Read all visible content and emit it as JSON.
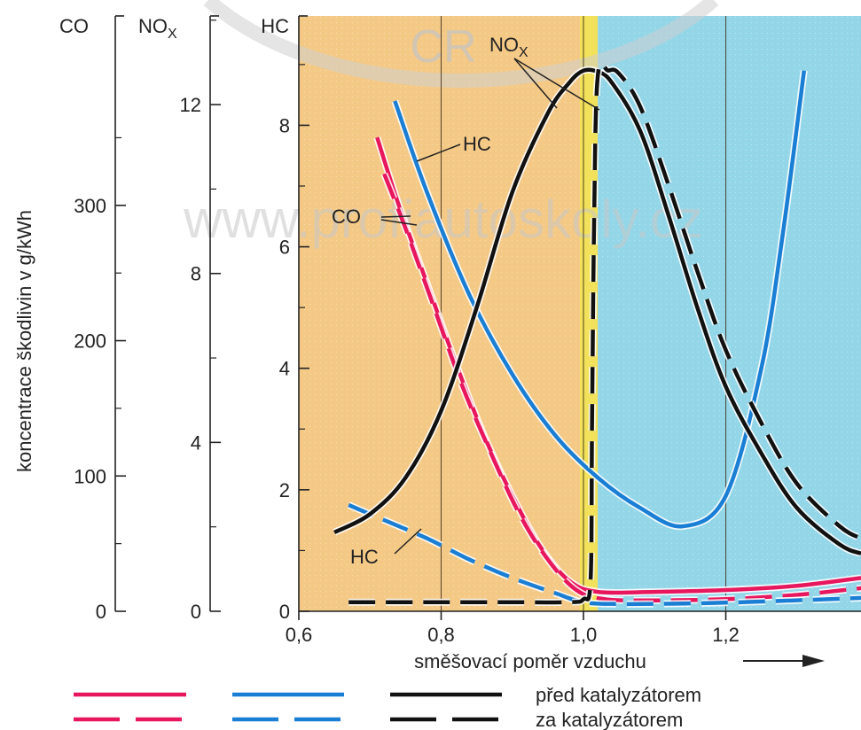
{
  "watermark": {
    "logo_text": "CR",
    "url": "www.profiautoskoly.cz"
  },
  "colors": {
    "rich_zone": "#f4c986",
    "lean_zone": "#93d6e8",
    "stoich_band": "#f2e15a",
    "co": "#e8175d",
    "hc": "#1a7fd4",
    "nox": "#111111",
    "axis": "#222222"
  },
  "chart_data": {
    "type": "line",
    "title": "",
    "xlabel": "směšovací poměr vzduchu",
    "ylabel": "koncentrace škodlivin v g/kWh",
    "xlim": [
      0.6,
      1.39
    ],
    "x_ticks": [
      "0,6",
      "0,8",
      "1,0",
      "1,2"
    ],
    "x_tick_values": [
      0.6,
      0.8,
      1.0,
      1.2
    ],
    "zones": {
      "rich": [
        0.6,
        1.0
      ],
      "stoich_band": [
        0.995,
        1.02
      ],
      "lean": [
        1.02,
        1.39
      ]
    },
    "axes": [
      {
        "name": "CO",
        "ylim": [
          0,
          440
        ],
        "ticks": [
          0,
          100,
          200,
          300
        ]
      },
      {
        "name": "NOx",
        "label_main": "NO",
        "label_sub": "X",
        "ylim": [
          0,
          14.1
        ],
        "ticks": [
          0,
          4,
          8,
          12
        ]
      },
      {
        "name": "HC",
        "ylim": [
          0,
          9.8
        ],
        "ticks": [
          0,
          2,
          4,
          6,
          8
        ]
      }
    ],
    "series": [
      {
        "name": "CO",
        "stage": "před",
        "axis": "HC",
        "style": "solid",
        "x": [
          0.71,
          0.74,
          0.78,
          0.82,
          0.86,
          0.9,
          0.94,
          0.98,
          1.02,
          1.1,
          1.2,
          1.3,
          1.39
        ],
        "y": [
          7.8,
          6.7,
          5.4,
          4.1,
          2.9,
          1.9,
          1.05,
          0.5,
          0.32,
          0.32,
          0.35,
          0.42,
          0.55
        ]
      },
      {
        "name": "CO",
        "stage": "za",
        "axis": "HC",
        "style": "dashed",
        "x": [
          0.72,
          0.75,
          0.79,
          0.83,
          0.87,
          0.91,
          0.95,
          0.99,
          1.03,
          1.1,
          1.2,
          1.3,
          1.39
        ],
        "y": [
          7.2,
          6.3,
          5.0,
          3.7,
          2.6,
          1.6,
          0.85,
          0.35,
          0.2,
          0.18,
          0.2,
          0.27,
          0.38
        ]
      },
      {
        "name": "HC",
        "stage": "před",
        "axis": "HC",
        "style": "solid",
        "x": [
          0.735,
          0.78,
          0.84,
          0.9,
          0.96,
          1.02,
          1.08,
          1.14,
          1.2,
          1.25,
          1.28,
          1.31
        ],
        "y": [
          8.4,
          6.9,
          5.2,
          3.9,
          2.9,
          2.2,
          1.7,
          1.4,
          1.9,
          4.0,
          6.2,
          8.9
        ]
      },
      {
        "name": "HC",
        "stage": "za",
        "axis": "HC",
        "style": "dashed",
        "x": [
          0.67,
          0.72,
          0.78,
          0.84,
          0.9,
          0.96,
          1.0,
          1.05,
          1.15,
          1.25,
          1.39
        ],
        "y": [
          1.75,
          1.5,
          1.2,
          0.85,
          0.55,
          0.3,
          0.15,
          0.12,
          0.13,
          0.16,
          0.22
        ]
      },
      {
        "name": "NOx",
        "stage": "před",
        "axis": "HC",
        "style": "solid",
        "x": [
          0.65,
          0.7,
          0.75,
          0.8,
          0.85,
          0.9,
          0.95,
          0.98,
          1.0,
          1.02,
          1.04,
          1.08,
          1.12,
          1.16,
          1.2,
          1.25,
          1.3,
          1.36,
          1.39
        ],
        "y": [
          1.3,
          1.6,
          2.2,
          3.3,
          5.0,
          6.9,
          8.2,
          8.7,
          8.9,
          8.88,
          8.7,
          7.9,
          6.5,
          5.0,
          3.7,
          2.6,
          1.7,
          1.1,
          0.95
        ]
      },
      {
        "name": "NOx",
        "stage": "za",
        "axis": "HC",
        "style": "dashed",
        "x": [
          0.67,
          0.8,
          0.9,
          0.98,
          1.0,
          1.01,
          1.012,
          1.015,
          1.02,
          1.035,
          1.05,
          1.08,
          1.12,
          1.16,
          1.2,
          1.25,
          1.3,
          1.36,
          1.39
        ],
        "y": [
          0.15,
          0.15,
          0.15,
          0.15,
          0.2,
          0.5,
          3.0,
          6.5,
          8.8,
          8.9,
          8.85,
          8.3,
          7.0,
          5.6,
          4.3,
          3.1,
          2.1,
          1.4,
          1.2
        ]
      }
    ],
    "annotations": [
      {
        "text_main": "NO",
        "text_sub": "X",
        "series": "NOx"
      },
      {
        "text": "HC",
        "series": "HC",
        "where": "upper"
      },
      {
        "text": "CO",
        "series": "CO"
      },
      {
        "text": "HC",
        "series": "HC",
        "where": "lower"
      }
    ],
    "legend": [
      {
        "style": "solid",
        "text": "před katalyzátorem"
      },
      {
        "style": "dashed",
        "text": "za katalyzátorem"
      }
    ]
  }
}
